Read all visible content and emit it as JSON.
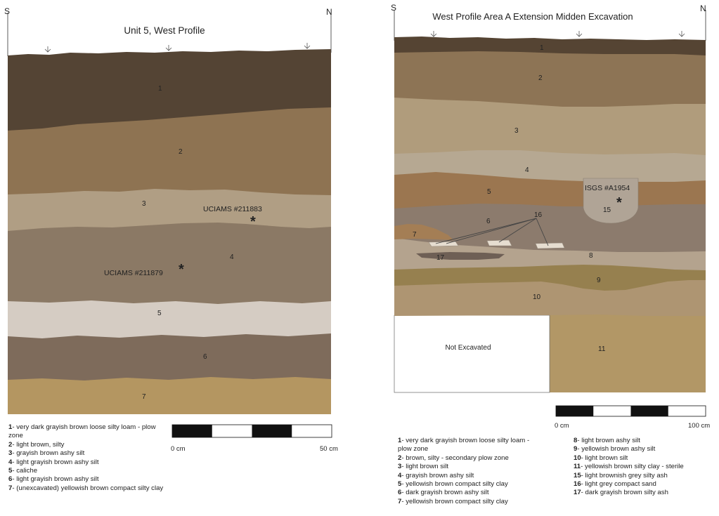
{
  "left_profile": {
    "title": "Unit 5, West Profile",
    "dir_left": "S",
    "dir_right": "N",
    "layers": [
      {
        "id": "1",
        "color": "#544434"
      },
      {
        "id": "2",
        "color": "#8e7352"
      },
      {
        "id": "3",
        "color": "#b09e84"
      },
      {
        "id": "4",
        "color": "#8b7965"
      },
      {
        "id": "5",
        "color": "#d5ccc3"
      },
      {
        "id": "6",
        "color": "#7e6b5b"
      },
      {
        "id": "7",
        "color": "#b49661"
      }
    ],
    "samples": [
      {
        "label": "UCIAMS #211883",
        "marker": "*"
      },
      {
        "label": "UCIAMS #211879",
        "marker": "*"
      }
    ],
    "scale": {
      "start": "0 cm",
      "end": "50 cm"
    },
    "legend": [
      {
        "num": "1",
        "text": "- very dark grayish brown loose silty loam - plow zone"
      },
      {
        "num": "2",
        "text": "- light brown, silty"
      },
      {
        "num": "3",
        "text": "- grayish brown ashy silt"
      },
      {
        "num": "4",
        "text": "- light grayish brown ashy silt"
      },
      {
        "num": "5",
        "text": "- caliche"
      },
      {
        "num": "6",
        "text": "- light grayish brown ashy silt"
      },
      {
        "num": "7",
        "text": "- (unexcavated) yellowish brown compact silty clay"
      }
    ]
  },
  "right_profile": {
    "title": "West Profile Area A Extension Midden Excavation",
    "dir_left": "S",
    "dir_right": "N",
    "layers": [
      {
        "id": "1",
        "color": "#554433"
      },
      {
        "id": "2",
        "color": "#8d7455"
      },
      {
        "id": "3",
        "color": "#b09c7c"
      },
      {
        "id": "4",
        "color": "#b6a892"
      },
      {
        "id": "5",
        "color": "#9b7650"
      },
      {
        "id": "6",
        "color": "#8c7b6d"
      },
      {
        "id": "7",
        "color": "#a47e55"
      },
      {
        "id": "8",
        "color": "#b4a38e"
      },
      {
        "id": "9",
        "color": "#96804f"
      },
      {
        "id": "10",
        "color": "#ae9572"
      },
      {
        "id": "11",
        "color": "#b29766"
      },
      {
        "id": "15",
        "color": "#b0a496"
      },
      {
        "id": "16",
        "color": "#e6ddd0"
      },
      {
        "id": "17",
        "color": "#6e5f55"
      }
    ],
    "not_excavated": "Not Excavated",
    "samples": [
      {
        "label": "ISGS #A1954",
        "marker": "*"
      }
    ],
    "scale": {
      "start": "0 cm",
      "end": "100 cm"
    },
    "legend_left": [
      {
        "num": "1",
        "text": "- very dark grayish brown loose silty loam - plow zone"
      },
      {
        "num": "2",
        "text": "- brown, silty - secondary plow zone"
      },
      {
        "num": "3",
        "text": "- light brown silt"
      },
      {
        "num": "4",
        "text": "- grayish brown ashy silt"
      },
      {
        "num": "5",
        "text": "- yellowish brown compact silty clay"
      },
      {
        "num": "6",
        "text": "- dark grayish brown ashy silt"
      },
      {
        "num": "7",
        "text": "- yellowish brown compact silty clay"
      }
    ],
    "legend_right": [
      {
        "num": "8",
        "text": "- light brown ashy silt"
      },
      {
        "num": "9",
        "text": "- yellowish brown ashy silt"
      },
      {
        "num": "10",
        "text": "- light brown silt"
      },
      {
        "num": "11",
        "text": "- yellowish brown silty clay - sterile"
      },
      {
        "num": "15",
        "text": "- light brownish grey silty ash"
      },
      {
        "num": "16",
        "text": "- light grey compact sand"
      },
      {
        "num": "17",
        "text": "- dark grayish brown silty ash"
      }
    ]
  }
}
